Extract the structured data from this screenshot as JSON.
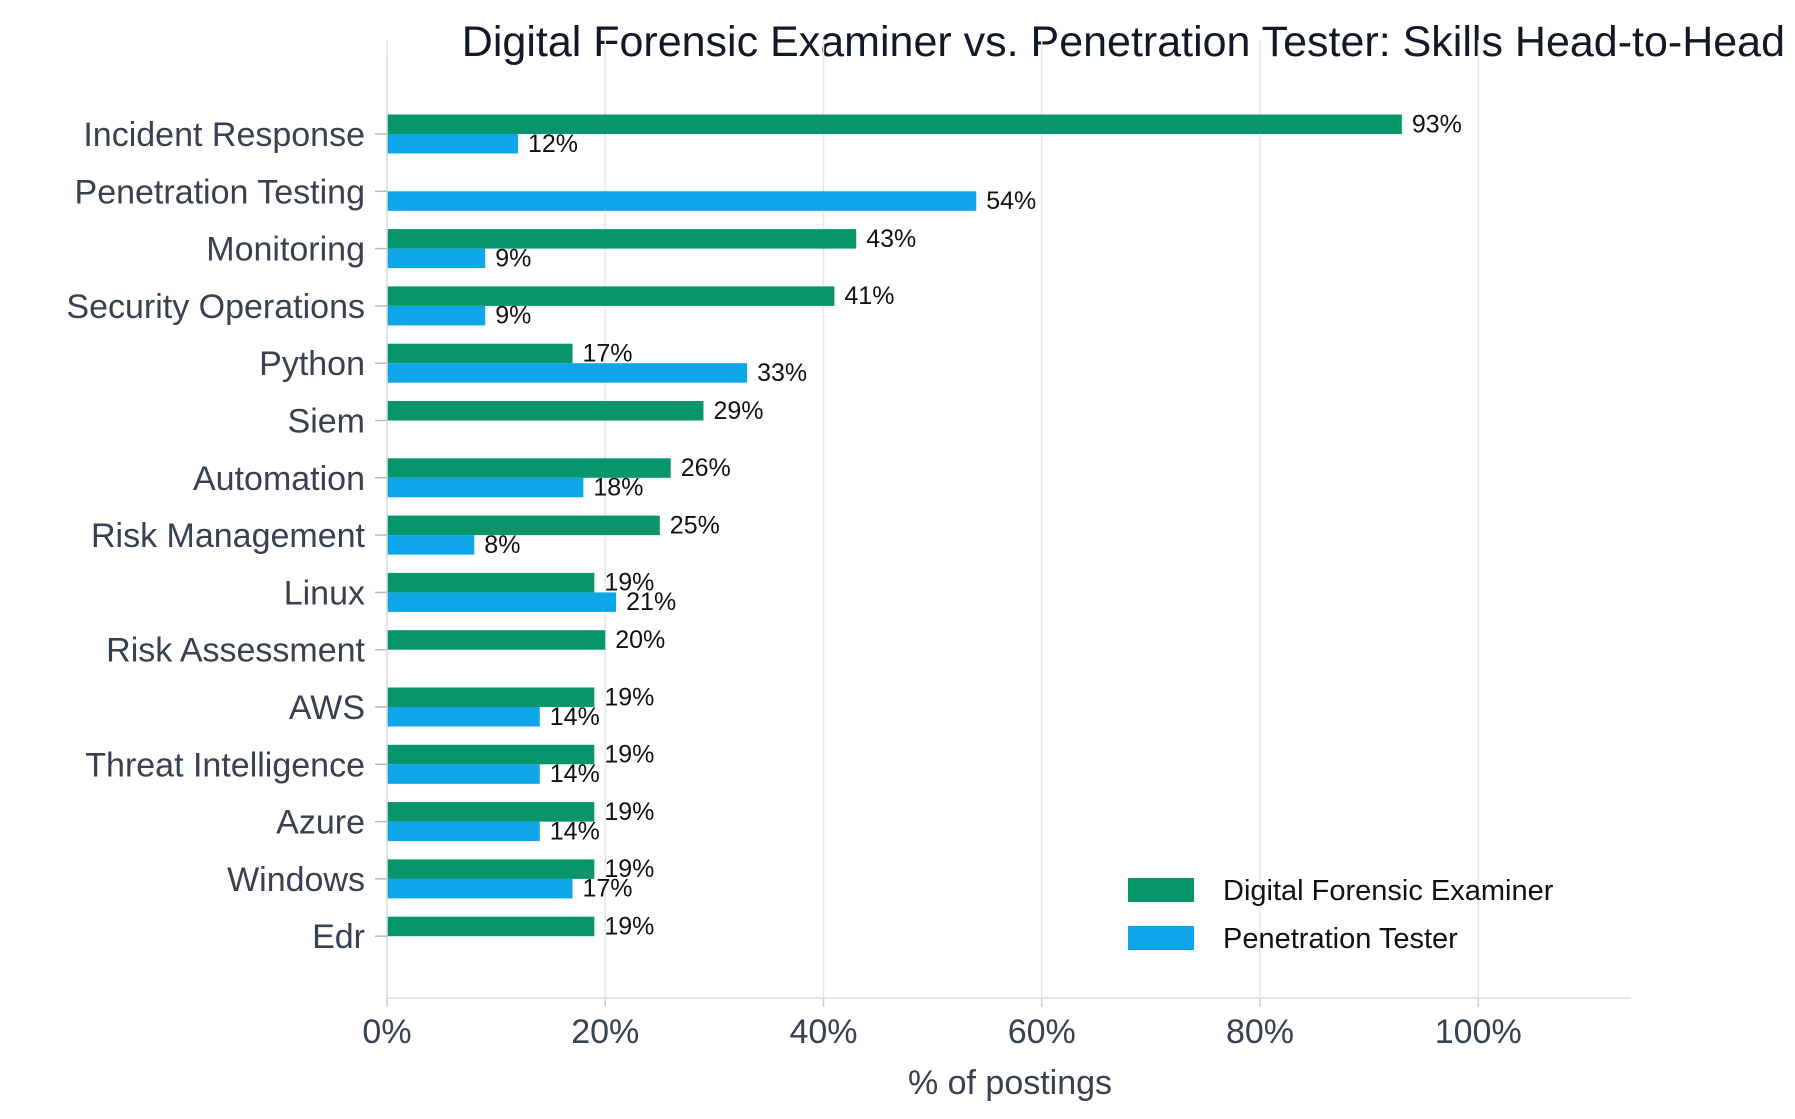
{
  "chart_data": {
    "type": "bar",
    "orientation": "horizontal",
    "title": "Digital Forensic Examiner vs. Penetration Tester: Skills Head-to-Head",
    "xlabel": "% of postings",
    "ylabel": "",
    "xlim": [
      0,
      114
    ],
    "xticks": [
      0,
      20,
      40,
      60,
      80,
      100
    ],
    "xtick_labels": [
      "0%",
      "20%",
      "40%",
      "60%",
      "80%",
      "100%"
    ],
    "grid": "vertical",
    "legend_position": "bottom-right",
    "categories": [
      "Incident Response",
      "Penetration Testing",
      "Monitoring",
      "Security Operations",
      "Python",
      "Siem",
      "Automation",
      "Risk Management",
      "Linux",
      "Risk Assessment",
      "AWS",
      "Threat Intelligence",
      "Azure",
      "Windows",
      "Edr"
    ],
    "series": [
      {
        "name": "Digital Forensic Examiner",
        "color": "#079669",
        "values": [
          93,
          null,
          43,
          41,
          17,
          29,
          26,
          25,
          19,
          20,
          19,
          19,
          19,
          19,
          19
        ],
        "labels": [
          "93%",
          "",
          "43%",
          "41%",
          "17%",
          "29%",
          "26%",
          "25%",
          "19%",
          "20%",
          "19%",
          "19%",
          "19%",
          "19%",
          "19%"
        ]
      },
      {
        "name": "Penetration Tester",
        "color": "#0fa5e9",
        "values": [
          12,
          54,
          9,
          9,
          33,
          null,
          18,
          8,
          21,
          null,
          14,
          14,
          14,
          17,
          null
        ],
        "labels": [
          "12%",
          "54%",
          "9%",
          "9%",
          "33%",
          "",
          "18%",
          "8%",
          "21%",
          "",
          "14%",
          "14%",
          "14%",
          "17%",
          ""
        ]
      }
    ]
  }
}
